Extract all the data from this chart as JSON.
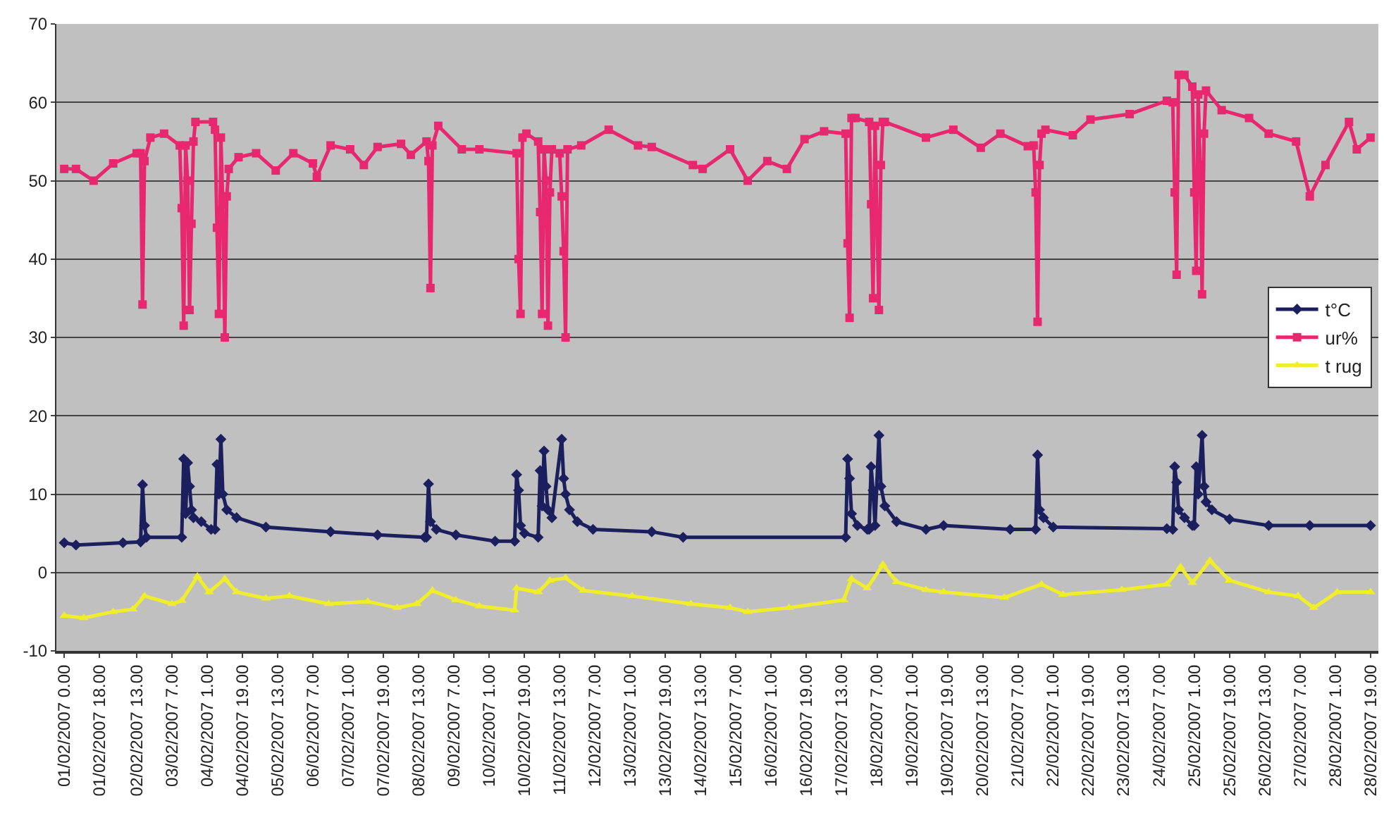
{
  "chart_data": {
    "type": "line",
    "xlim": [
      "2007-01-31T20:00",
      "2007-02-28T23:00"
    ],
    "ylim": [
      -10,
      70
    ],
    "yticks": [
      -10,
      0,
      10,
      20,
      30,
      40,
      50,
      60,
      70
    ],
    "grid": "y",
    "legend": "right",
    "xticks": [
      {
        "value": "2007-02-01T00:00",
        "label": "01/02/2007 0.00"
      },
      {
        "value": "2007-02-01T18:00",
        "label": "01/02/2007 18.00"
      },
      {
        "value": "2007-02-02T13:00",
        "label": "02/02/2007 13.00"
      },
      {
        "value": "2007-02-03T07:00",
        "label": "03/02/2007 7.00"
      },
      {
        "value": "2007-02-04T01:00",
        "label": "04/02/2007 1.00"
      },
      {
        "value": "2007-02-04T19:00",
        "label": "04/02/2007 19.00"
      },
      {
        "value": "2007-02-05T13:00",
        "label": "05/02/2007 13.00"
      },
      {
        "value": "2007-02-06T07:00",
        "label": "06/02/2007 7.00"
      },
      {
        "value": "2007-02-07T01:00",
        "label": "07/02/2007 1.00"
      },
      {
        "value": "2007-02-07T19:00",
        "label": "07/02/2007 19.00"
      },
      {
        "value": "2007-02-08T13:00",
        "label": "08/02/2007 13.00"
      },
      {
        "value": "2007-02-09T07:00",
        "label": "09/02/2007 7.00"
      },
      {
        "value": "2007-02-10T01:00",
        "label": "10/02/2007 1.00"
      },
      {
        "value": "2007-02-10T19:00",
        "label": "10/02/2007 19.00"
      },
      {
        "value": "2007-02-11T13:00",
        "label": "11/02/2007 13.00"
      },
      {
        "value": "2007-02-12T07:00",
        "label": "12/02/2007 7.00"
      },
      {
        "value": "2007-02-13T01:00",
        "label": "13/02/2007 1.00"
      },
      {
        "value": "2007-02-13T19:00",
        "label": "13/02/2007 19.00"
      },
      {
        "value": "2007-02-14T13:00",
        "label": "14/02/2007 13.00"
      },
      {
        "value": "2007-02-15T07:00",
        "label": "15/02/2007 7.00"
      },
      {
        "value": "2007-02-16T01:00",
        "label": "16/02/2007 1.00"
      },
      {
        "value": "2007-02-16T19:00",
        "label": "16/02/2007 19.00"
      },
      {
        "value": "2007-02-17T13:00",
        "label": "17/02/2007 13.00"
      },
      {
        "value": "2007-02-18T07:00",
        "label": "18/02/2007 7.00"
      },
      {
        "value": "2007-02-19T01:00",
        "label": "19/02/2007 1.00"
      },
      {
        "value": "2007-02-19T19:00",
        "label": "19/02/2007 19.00"
      },
      {
        "value": "2007-02-20T13:00",
        "label": "20/02/2007 13.00"
      },
      {
        "value": "2007-02-21T07:00",
        "label": "21/02/2007 7.00"
      },
      {
        "value": "2007-02-22T01:00",
        "label": "22/02/2007 1.00"
      },
      {
        "value": "2007-02-22T19:00",
        "label": "22/02/2007 19.00"
      },
      {
        "value": "2007-02-23T13:00",
        "label": "23/02/2007 13.00"
      },
      {
        "value": "2007-02-24T07:00",
        "label": "24/02/2007 7.00"
      },
      {
        "value": "2007-02-25T01:00",
        "label": "25/02/2007 1.00"
      },
      {
        "value": "2007-02-25T19:00",
        "label": "25/02/2007 19.00"
      },
      {
        "value": "2007-02-26T13:00",
        "label": "26/02/2007 13.00"
      },
      {
        "value": "2007-02-27T07:00",
        "label": "27/02/2007 7.00"
      },
      {
        "value": "2007-02-28T01:00",
        "label": "28/02/2007 1.00"
      },
      {
        "value": "2007-02-28T19:00",
        "label": "28/02/2007 19.00"
      }
    ],
    "series": [
      {
        "name": "t°C",
        "color": "#1b1f5e",
        "marker": "diamond",
        "x": [
          "2007-02-01T00:00",
          "2007-02-01T06:00",
          "2007-02-02T06:00",
          "2007-02-02T15:00",
          "2007-02-02T16:00",
          "2007-02-02T17:00",
          "2007-02-02T18:00",
          "2007-02-03T12:00",
          "2007-02-03T13:00",
          "2007-02-03T14:00",
          "2007-02-03T15:00",
          "2007-02-03T16:00",
          "2007-02-03T17:00",
          "2007-02-03T18:00",
          "2007-02-03T22:00",
          "2007-02-04T03:00",
          "2007-02-04T05:00",
          "2007-02-04T06:00",
          "2007-02-04T07:00",
          "2007-02-04T08:00",
          "2007-02-04T09:00",
          "2007-02-04T11:00",
          "2007-02-04T16:00",
          "2007-02-05T07:00",
          "2007-02-06T16:00",
          "2007-02-07T16:00",
          "2007-02-08T16:00",
          "2007-02-08T17:00",
          "2007-02-08T18:00",
          "2007-02-08T19:00",
          "2007-02-08T22:00",
          "2007-02-09T08:00",
          "2007-02-10T04:00",
          "2007-02-10T14:00",
          "2007-02-10T15:00",
          "2007-02-10T16:00",
          "2007-02-10T17:00",
          "2007-02-10T19:00",
          "2007-02-11T02:00",
          "2007-02-11T03:00",
          "2007-02-11T04:00",
          "2007-02-11T05:00",
          "2007-02-11T06:00",
          "2007-02-11T07:00",
          "2007-02-11T09:00",
          "2007-02-11T14:00",
          "2007-02-11T15:00",
          "2007-02-11T16:00",
          "2007-02-11T18:00",
          "2007-02-11T22:00",
          "2007-02-12T06:00",
          "2007-02-13T12:00",
          "2007-02-14T04:00",
          "2007-02-17T15:00",
          "2007-02-17T16:00",
          "2007-02-17T17:00",
          "2007-02-17T18:00",
          "2007-02-17T21:00",
          "2007-02-18T02:00",
          "2007-02-18T03:00",
          "2007-02-18T04:00",
          "2007-02-18T05:00",
          "2007-02-18T06:00",
          "2007-02-18T08:00",
          "2007-02-18T09:00",
          "2007-02-18T11:00",
          "2007-02-18T17:00",
          "2007-02-19T08:00",
          "2007-02-19T17:00",
          "2007-02-21T03:00",
          "2007-02-21T16:00",
          "2007-02-21T17:00",
          "2007-02-21T18:00",
          "2007-02-21T20:00",
          "2007-02-22T01:00",
          "2007-02-24T11:00",
          "2007-02-24T14:00",
          "2007-02-24T15:00",
          "2007-02-24T16:00",
          "2007-02-24T17:00",
          "2007-02-24T20:00",
          "2007-02-25T00:00",
          "2007-02-25T01:00",
          "2007-02-25T02:00",
          "2007-02-25T03:00",
          "2007-02-25T05:00",
          "2007-02-25T06:00",
          "2007-02-25T07:00",
          "2007-02-25T10:00",
          "2007-02-25T19:00",
          "2007-02-26T15:00",
          "2007-02-27T12:00",
          "2007-02-28T19:00"
        ],
        "values": [
          3.8,
          3.5,
          3.8,
          3.9,
          11.2,
          6,
          4.5,
          4.5,
          14.5,
          7.5,
          14,
          11,
          8,
          7,
          6.5,
          5.5,
          5.5,
          13.8,
          10,
          17,
          10,
          8,
          7,
          5.8,
          5.2,
          4.8,
          4.5,
          4.5,
          11.3,
          6.5,
          5.5,
          4.8,
          4,
          4,
          12.5,
          10.5,
          6,
          5,
          4.5,
          13,
          8.5,
          15.5,
          11,
          8,
          7,
          17,
          12,
          10,
          8,
          6.5,
          5.5,
          5.2,
          4.5,
          4.5,
          14.5,
          12,
          7.5,
          6,
          5.5,
          5.5,
          13.5,
          10.5,
          6,
          17.5,
          11,
          8.5,
          6.5,
          5.5,
          6,
          5.5,
          5.5,
          15,
          8,
          7,
          5.8,
          5.6,
          5.5,
          13.5,
          11.5,
          8,
          7,
          6,
          6,
          13.5,
          10,
          17.5,
          11,
          9,
          8,
          6.8,
          6,
          6,
          6
        ]
      },
      {
        "name": "ur%",
        "color": "#e8286e",
        "marker": "square",
        "x": [
          "2007-02-01T00:00",
          "2007-02-01T06:00",
          "2007-02-01T15:00",
          "2007-02-02T01:00",
          "2007-02-02T13:00",
          "2007-02-02T15:00",
          "2007-02-02T16:00",
          "2007-02-02T17:00",
          "2007-02-02T20:00",
          "2007-02-03T03:00",
          "2007-02-03T11:00",
          "2007-02-03T12:00",
          "2007-02-03T13:00",
          "2007-02-03T14:00",
          "2007-02-03T15:00",
          "2007-02-03T16:00",
          "2007-02-03T17:00",
          "2007-02-03T18:00",
          "2007-02-03T19:00",
          "2007-02-04T04:00",
          "2007-02-04T05:00",
          "2007-02-04T06:00",
          "2007-02-04T07:00",
          "2007-02-04T08:00",
          "2007-02-04T09:00",
          "2007-02-04T10:00",
          "2007-02-04T11:00",
          "2007-02-04T12:00",
          "2007-02-04T17:00",
          "2007-02-05T02:00",
          "2007-02-05T12:00",
          "2007-02-05T21:00",
          "2007-02-06T07:00",
          "2007-02-06T09:00",
          "2007-02-06T16:00",
          "2007-02-07T02:00",
          "2007-02-07T09:00",
          "2007-02-07T16:00",
          "2007-02-08T04:00",
          "2007-02-08T09:00",
          "2007-02-08T17:00",
          "2007-02-08T18:00",
          "2007-02-08T19:00",
          "2007-02-08T20:00",
          "2007-02-08T23:00",
          "2007-02-09T11:00",
          "2007-02-09T20:00",
          "2007-02-10T15:00",
          "2007-02-10T16:00",
          "2007-02-10T17:00",
          "2007-02-10T18:00",
          "2007-02-10T20:00",
          "2007-02-11T02:00",
          "2007-02-11T03:00",
          "2007-02-11T04:00",
          "2007-02-11T05:00",
          "2007-02-11T06:00",
          "2007-02-11T07:00",
          "2007-02-11T08:00",
          "2007-02-11T09:00",
          "2007-02-11T13:00",
          "2007-02-11T14:00",
          "2007-02-11T15:00",
          "2007-02-11T16:00",
          "2007-02-11T17:00",
          "2007-02-12T00:00",
          "2007-02-12T14:00",
          "2007-02-13T05:00",
          "2007-02-13T12:00",
          "2007-02-14T09:00",
          "2007-02-14T14:00",
          "2007-02-15T04:00",
          "2007-02-15T13:00",
          "2007-02-15T23:00",
          "2007-02-16T09:00",
          "2007-02-16T18:00",
          "2007-02-17T04:00",
          "2007-02-17T15:00",
          "2007-02-17T16:00",
          "2007-02-17T17:00",
          "2007-02-17T18:00",
          "2007-02-17T20:00",
          "2007-02-18T03:00",
          "2007-02-18T04:00",
          "2007-02-18T05:00",
          "2007-02-18T06:00",
          "2007-02-18T07:00",
          "2007-02-18T08:00",
          "2007-02-18T09:00",
          "2007-02-18T10:00",
          "2007-02-18T11:00",
          "2007-02-19T08:00",
          "2007-02-19T22:00",
          "2007-02-20T12:00",
          "2007-02-20T22:00",
          "2007-02-21T12:00",
          "2007-02-21T15:00",
          "2007-02-21T16:00",
          "2007-02-21T17:00",
          "2007-02-21T18:00",
          "2007-02-21T19:00",
          "2007-02-21T21:00",
          "2007-02-22T11:00",
          "2007-02-22T20:00",
          "2007-02-23T16:00",
          "2007-02-24T11:00",
          "2007-02-24T14:00",
          "2007-02-24T15:00",
          "2007-02-24T16:00",
          "2007-02-24T17:00",
          "2007-02-24T20:00",
          "2007-02-25T00:00",
          "2007-02-25T01:00",
          "2007-02-25T02:00",
          "2007-02-25T03:00",
          "2007-02-25T04:00",
          "2007-02-25T05:00",
          "2007-02-25T06:00",
          "2007-02-25T07:00",
          "2007-02-25T15:00",
          "2007-02-26T05:00",
          "2007-02-26T15:00",
          "2007-02-27T05:00",
          "2007-02-27T12:00",
          "2007-02-27T20:00",
          "2007-02-28T08:00",
          "2007-02-28T12:00",
          "2007-02-28T19:00"
        ],
        "values": [
          51.5,
          51.5,
          50,
          52.2,
          53.5,
          53.5,
          34.2,
          52.5,
          55.5,
          56,
          54.5,
          46.5,
          31.5,
          54.5,
          50,
          33.5,
          44.5,
          55,
          57.5,
          57.5,
          56.5,
          44,
          33,
          55.5,
          47,
          30,
          48,
          51.5,
          53,
          53.5,
          51.3,
          53.5,
          52.2,
          50.5,
          54.5,
          54,
          52,
          54.3,
          54.7,
          53.3,
          55,
          52.5,
          36.3,
          54.5,
          57,
          54,
          54,
          53.5,
          40,
          33,
          55.5,
          56,
          55,
          46,
          33,
          54,
          50,
          31.5,
          48.5,
          54,
          53.5,
          48,
          41,
          30,
          54,
          54.5,
          56.5,
          54.5,
          54.3,
          52,
          51.5,
          54,
          50,
          52.5,
          51.5,
          55.3,
          56.3,
          56,
          42,
          32.5,
          58,
          58,
          57.5,
          47,
          35,
          57,
          45,
          33.5,
          52,
          57.5,
          57.5,
          55.5,
          56.5,
          54.2,
          56,
          54.4,
          54.5,
          48.5,
          32,
          52,
          56,
          56.5,
          55.8,
          57.8,
          58.5,
          60.2,
          60,
          48.5,
          38,
          63.5,
          63.5,
          62,
          48.5,
          38.5,
          61,
          52,
          35.5,
          56,
          61.5,
          59,
          58,
          56,
          55,
          48,
          52,
          57.5,
          54,
          55.5
        ]
      },
      {
        "name": "t rug",
        "color": "#f0ee2c",
        "marker": "triangle",
        "x": [
          "2007-02-01T00:00",
          "2007-02-01T10:00",
          "2007-02-02T01:00",
          "2007-02-02T11:00",
          "2007-02-02T17:00",
          "2007-02-03T07:00",
          "2007-02-03T12:00",
          "2007-02-03T20:00",
          "2007-02-04T02:00",
          "2007-02-04T10:00",
          "2007-02-04T16:00",
          "2007-02-05T07:00",
          "2007-02-05T19:00",
          "2007-02-06T15:00",
          "2007-02-07T11:00",
          "2007-02-08T02:00",
          "2007-02-08T12:00",
          "2007-02-08T20:00",
          "2007-02-09T08:00",
          "2007-02-09T20:00",
          "2007-02-10T14:00",
          "2007-02-10T15:00",
          "2007-02-11T02:00",
          "2007-02-11T08:00",
          "2007-02-11T16:00",
          "2007-02-12T01:00",
          "2007-02-13T02:00",
          "2007-02-14T08:00",
          "2007-02-15T04:00",
          "2007-02-15T13:00",
          "2007-02-16T10:00",
          "2007-02-17T14:00",
          "2007-02-17T18:00",
          "2007-02-18T02:00",
          "2007-02-18T10:00",
          "2007-02-18T17:00",
          "2007-02-19T08:00",
          "2007-02-19T17:00",
          "2007-02-21T00:00",
          "2007-02-21T19:00",
          "2007-02-22T06:00",
          "2007-02-23T12:00",
          "2007-02-24T11:00",
          "2007-02-24T18:00",
          "2007-02-25T00:00",
          "2007-02-25T09:00",
          "2007-02-25T19:00",
          "2007-02-26T15:00",
          "2007-02-27T06:00",
          "2007-02-27T14:00",
          "2007-02-28T02:00",
          "2007-02-28T19:00"
        ],
        "values": [
          -5.5,
          -5.8,
          -5,
          -4.7,
          -3,
          -4,
          -3.6,
          -0.5,
          -2.5,
          -0.8,
          -2.5,
          -3.3,
          -3,
          -4,
          -3.7,
          -4.5,
          -4,
          -2.3,
          -3.5,
          -4.3,
          -4.8,
          -2,
          -2.5,
          -1,
          -0.7,
          -2.3,
          -3,
          -4,
          -4.5,
          -5,
          -4.5,
          -3.5,
          -0.8,
          -2,
          1,
          -1.2,
          -2.2,
          -2.5,
          -3.2,
          -1.5,
          -2.8,
          -2.2,
          -1.5,
          0.7,
          -1.3,
          1.5,
          -1,
          -2.5,
          -3,
          -4.5,
          -2.5,
          -2.5
        ]
      }
    ]
  }
}
